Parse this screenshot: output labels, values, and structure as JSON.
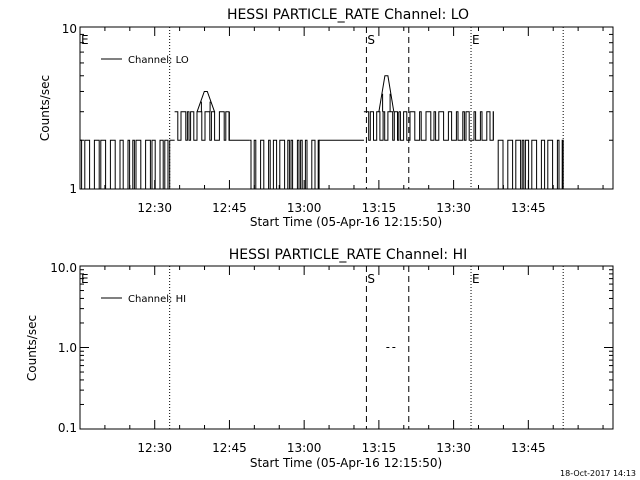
{
  "footer": {
    "timestamp": "18-Oct-2017 14:13"
  },
  "chart_data": [
    {
      "type": "line",
      "title": "HESSI PARTICLE_RATE Channel: LO",
      "xlabel": "Start Time (05-Apr-16 12:15:50)",
      "ylabel": "Counts/sec",
      "yscale": "log",
      "ylim": [
        1,
        10
      ],
      "y_tick_labels": [
        "1",
        "10"
      ],
      "x_tick_labels": [
        "12:30",
        "12:45",
        "13:00",
        "13:15",
        "13:30",
        "13:45"
      ],
      "xlim_minutes": [
        0,
        107
      ],
      "legend": {
        "placement": "top-left",
        "entries": [
          "Channel: LO"
        ]
      },
      "markers": [
        {
          "label": "E",
          "minute": 0,
          "style": "none"
        },
        {
          "label": "",
          "minute": 18,
          "style": "dotted"
        },
        {
          "label": "S",
          "minute": 57.5,
          "style": "dashed"
        },
        {
          "label": "",
          "minute": 66,
          "style": "dashed"
        },
        {
          "label": "E",
          "minute": 78.5,
          "style": "dotted"
        },
        {
          "label": "",
          "minute": 97,
          "style": "dotted"
        }
      ],
      "series": [
        {
          "name": "Channel: LO",
          "segments": [
            {
              "x0": 0,
              "x1": 18,
              "pattern": "noisy",
              "low": 1,
              "high": 2
            },
            {
              "x0": 18,
              "x1": 19,
              "pattern": "flat",
              "value": 2
            },
            {
              "x0": 19,
              "x1": 30,
              "pattern": "noisy",
              "low": 2,
              "high": 3
            },
            {
              "x0": 23.5,
              "x1": 27,
              "pattern": "peak",
              "value": 4
            },
            {
              "x0": 30,
              "x1": 34,
              "pattern": "flat",
              "value": 2
            },
            {
              "x0": 34,
              "x1": 48,
              "pattern": "noisy",
              "low": 1,
              "high": 2
            },
            {
              "x0": 48,
              "x1": 57,
              "pattern": "flat",
              "value": 2
            },
            {
              "x0": 57,
              "x1": 64,
              "pattern": "noisy",
              "low": 2,
              "high": 3
            },
            {
              "x0": 60,
              "x1": 63,
              "pattern": "peak",
              "value": 5
            },
            {
              "x0": 64,
              "x1": 83,
              "pattern": "noisy",
              "low": 2,
              "high": 3
            },
            {
              "x0": 83,
              "x1": 97,
              "pattern": "noisy",
              "low": 1,
              "high": 2
            }
          ]
        }
      ]
    },
    {
      "type": "line",
      "title": "HESSI PARTICLE_RATE Channel: HI",
      "xlabel": "Start Time (05-Apr-16 12:15:50)",
      "ylabel": "Counts/sec",
      "yscale": "log",
      "ylim": [
        0.1,
        10
      ],
      "y_tick_labels": [
        "0.1",
        "1.0",
        "10.0"
      ],
      "x_tick_labels": [
        "12:30",
        "12:45",
        "13:00",
        "13:15",
        "13:30",
        "13:45"
      ],
      "xlim_minutes": [
        0,
        107
      ],
      "legend": {
        "placement": "top-left",
        "entries": [
          "Channel: HI"
        ]
      },
      "markers": [
        {
          "label": "E",
          "minute": 0,
          "style": "none"
        },
        {
          "label": "",
          "minute": 18,
          "style": "dotted"
        },
        {
          "label": "S",
          "minute": 57.5,
          "style": "dashed"
        },
        {
          "label": "",
          "minute": 66,
          "style": "dashed"
        },
        {
          "label": "E",
          "minute": 78.5,
          "style": "dotted"
        },
        {
          "label": "",
          "minute": 97,
          "style": "dotted"
        }
      ],
      "series": [
        {
          "name": "Channel: HI",
          "segments": [
            {
              "x0": 61.5,
              "x1": 63.5,
              "pattern": "flat",
              "value": 1.0,
              "dashed": true
            }
          ]
        }
      ]
    }
  ]
}
